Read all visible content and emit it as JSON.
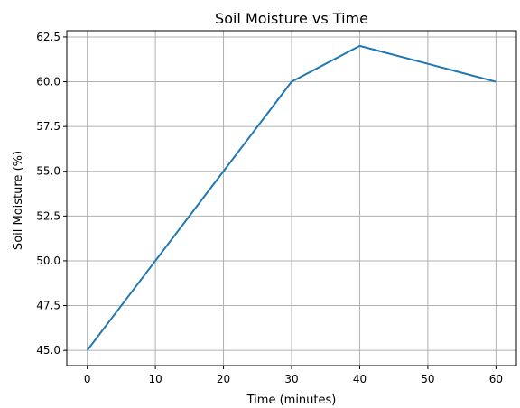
{
  "chart_data": {
    "type": "line",
    "title": "Soil Moisture vs Time",
    "xlabel": "Time (minutes)",
    "ylabel": "Soil Moisture (%)",
    "x": [
      0,
      10,
      20,
      30,
      40,
      50,
      60
    ],
    "series": [
      {
        "values": [
          45.0,
          50.0,
          55.0,
          60.0,
          62.0,
          61.0,
          60.0
        ]
      }
    ],
    "xticks": [
      "0",
      "10",
      "20",
      "30",
      "40",
      "50",
      "60"
    ],
    "yticks": [
      "45.0",
      "47.5",
      "50.0",
      "52.5",
      "55.0",
      "57.5",
      "60.0",
      "62.5"
    ],
    "xlim": [
      -3,
      63
    ],
    "ylim": [
      44.15,
      62.85
    ],
    "grid": true,
    "colors": {
      "line": "#1f77b4",
      "grid": "#b0b0b0",
      "axes": "#000000"
    }
  }
}
